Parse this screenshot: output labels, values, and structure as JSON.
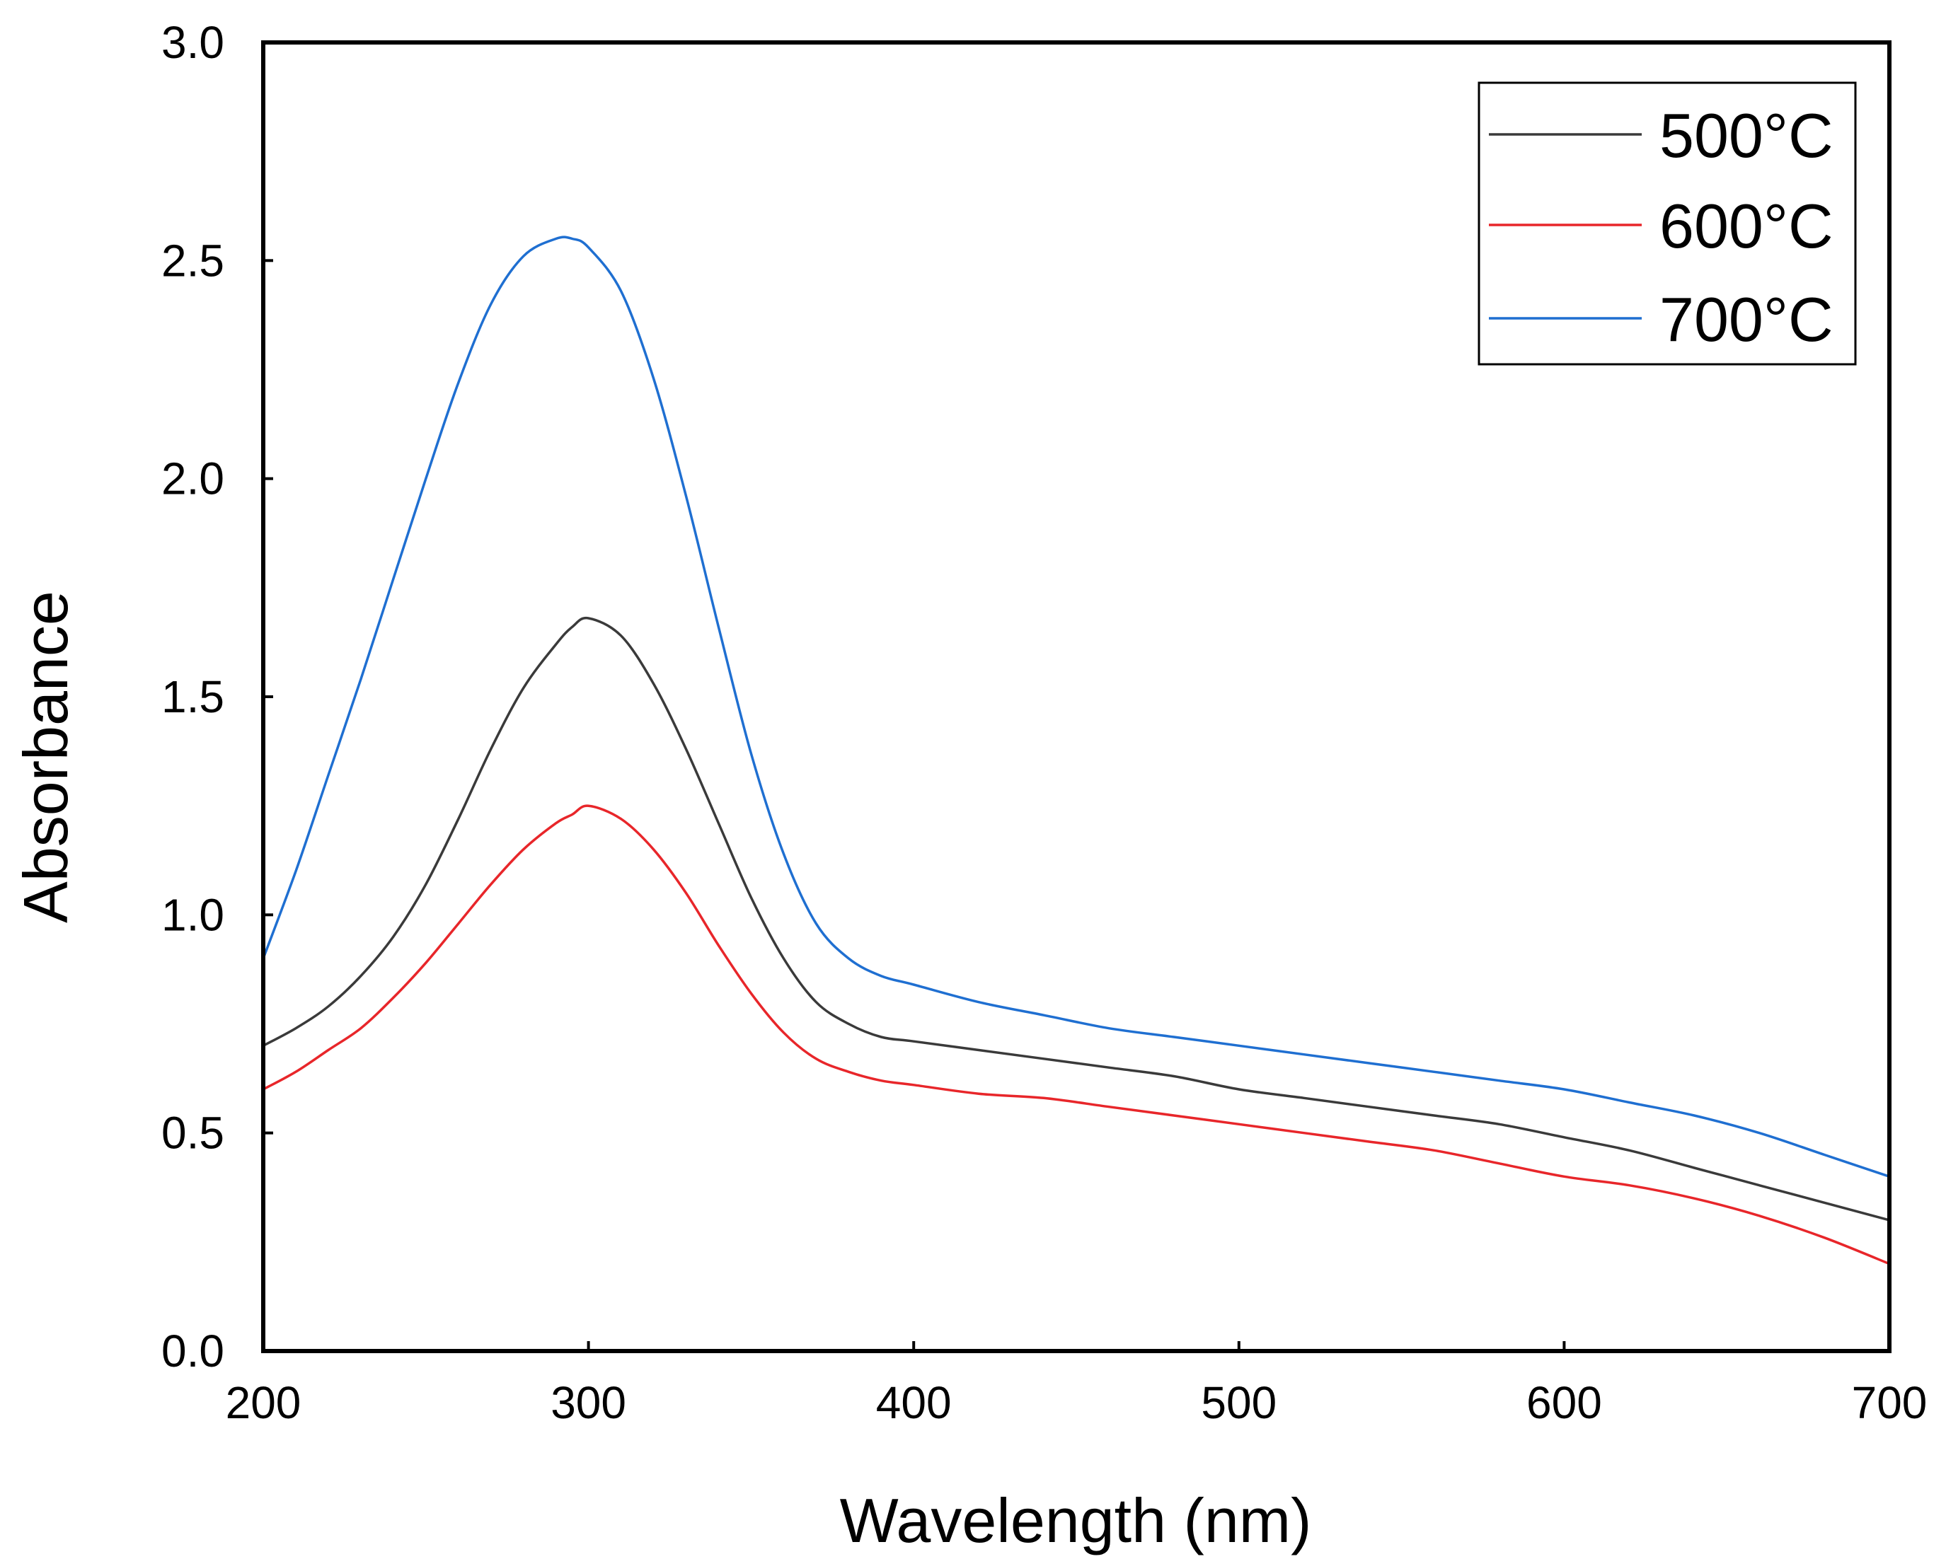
{
  "chart_data": {
    "type": "line",
    "title": "",
    "xlabel": "Wavelength (nm)",
    "ylabel": "Absorbance",
    "xlim": [
      200,
      700
    ],
    "ylim": [
      0.0,
      3.0
    ],
    "xticks": [
      200,
      300,
      400,
      500,
      600,
      700
    ],
    "yticks": [
      0.0,
      0.5,
      1.0,
      1.5,
      2.0,
      2.5,
      3.0
    ],
    "xtick_labels": [
      "200",
      "300",
      "400",
      "500",
      "600",
      "700"
    ],
    "ytick_labels": [
      "0.0",
      "0.5",
      "1.0",
      "1.5",
      "2.0",
      "2.5",
      "3.0"
    ],
    "grid": false,
    "legend_position": "top-right",
    "x": [
      200,
      210,
      220,
      230,
      240,
      250,
      260,
      270,
      280,
      290,
      295,
      300,
      310,
      320,
      330,
      340,
      350,
      360,
      370,
      380,
      390,
      400,
      420,
      440,
      460,
      480,
      500,
      520,
      540,
      560,
      580,
      600,
      620,
      640,
      660,
      680,
      700
    ],
    "series": [
      {
        "name": "500°C",
        "color": "#3a3a3a",
        "values": [
          0.7,
          0.74,
          0.79,
          0.86,
          0.95,
          1.07,
          1.22,
          1.38,
          1.52,
          1.62,
          1.66,
          1.68,
          1.64,
          1.53,
          1.38,
          1.21,
          1.04,
          0.9,
          0.8,
          0.75,
          0.72,
          0.71,
          0.69,
          0.67,
          0.65,
          0.63,
          0.6,
          0.58,
          0.56,
          0.54,
          0.52,
          0.49,
          0.46,
          0.42,
          0.38,
          0.34,
          0.3
        ]
      },
      {
        "name": "600°C",
        "color": "#e8262a",
        "values": [
          0.6,
          0.64,
          0.69,
          0.74,
          0.81,
          0.89,
          0.98,
          1.07,
          1.15,
          1.21,
          1.23,
          1.25,
          1.22,
          1.15,
          1.05,
          0.93,
          0.82,
          0.73,
          0.67,
          0.64,
          0.62,
          0.61,
          0.59,
          0.58,
          0.56,
          0.54,
          0.52,
          0.5,
          0.48,
          0.46,
          0.43,
          0.4,
          0.38,
          0.35,
          0.31,
          0.26,
          0.2
        ]
      },
      {
        "name": "700°C",
        "color": "#1f6fd1",
        "values": [
          0.9,
          1.1,
          1.32,
          1.54,
          1.77,
          2.0,
          2.22,
          2.4,
          2.51,
          2.55,
          2.55,
          2.53,
          2.43,
          2.23,
          1.96,
          1.66,
          1.37,
          1.14,
          0.98,
          0.9,
          0.86,
          0.84,
          0.8,
          0.77,
          0.74,
          0.72,
          0.7,
          0.68,
          0.66,
          0.64,
          0.62,
          0.6,
          0.57,
          0.54,
          0.5,
          0.45,
          0.4
        ]
      }
    ]
  }
}
